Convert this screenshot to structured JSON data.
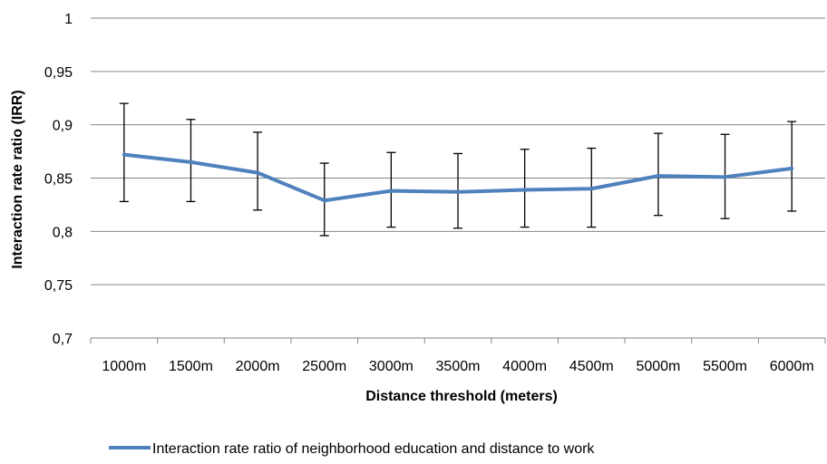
{
  "chart_data": {
    "type": "line",
    "xlabel": "Distance threshold (meters)",
    "ylabel": "Interaction rate ratio (IRR)",
    "ylim": [
      0.7,
      1.0
    ],
    "y_ticks": [
      "0,7",
      "0,75",
      "0,8",
      "0,85",
      "0,9",
      "0,95",
      "1"
    ],
    "categories": [
      "1000m",
      "1500m",
      "2000m",
      "2500m",
      "3000m",
      "3500m",
      "4000m",
      "4500m",
      "5000m",
      "5500m",
      "6000m"
    ],
    "grid": "horizontal",
    "legend_position": "bottom",
    "series": [
      {
        "name": "Interaction rate ratio of neighborhood education and distance to work",
        "color": "#4f81bd",
        "values": [
          0.872,
          0.865,
          0.855,
          0.829,
          0.838,
          0.837,
          0.839,
          0.84,
          0.852,
          0.851,
          0.859
        ],
        "error_upper": [
          0.92,
          0.905,
          0.893,
          0.864,
          0.874,
          0.873,
          0.877,
          0.878,
          0.892,
          0.891,
          0.903
        ],
        "error_lower": [
          0.828,
          0.828,
          0.82,
          0.796,
          0.804,
          0.803,
          0.804,
          0.804,
          0.815,
          0.812,
          0.819
        ]
      }
    ]
  }
}
